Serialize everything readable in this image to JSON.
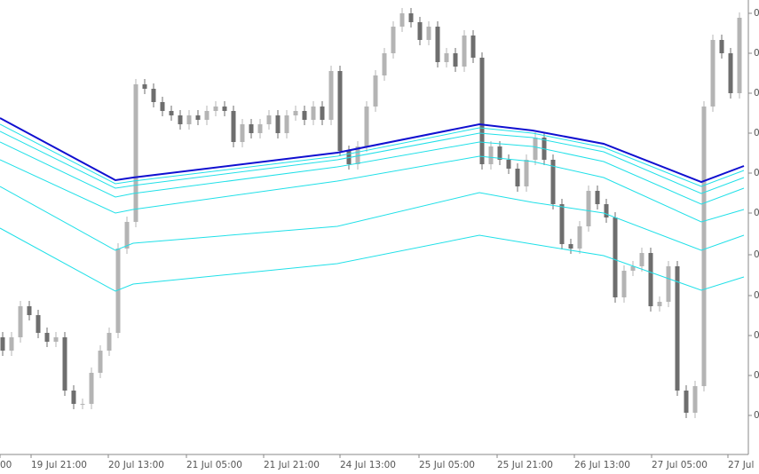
{
  "chart_data": {
    "type": "candlestick",
    "xlim": [
      -0.3,
      84
    ],
    "ylim": [
      0,
      512
    ],
    "up_color": "#b4b4b4",
    "down_color": "#6e6e6e",
    "xticks": [
      {
        "value": -0.3,
        "label": "00"
      },
      {
        "value": 3.2,
        "label": "19 Jul 21:00"
      },
      {
        "value": 11.9,
        "label": "20 Jul 13:00"
      },
      {
        "value": 20.7,
        "label": "21 Jul 05:00"
      },
      {
        "value": 29.4,
        "label": "21 Jul 21:00"
      },
      {
        "value": 38,
        "label": "24 Jul 13:00"
      },
      {
        "value": 46.9,
        "label": "25 Jul 05:00"
      },
      {
        "value": 55.7,
        "label": "25 Jul 21:00"
      },
      {
        "value": 64.4,
        "label": "26 Jul 13:00"
      },
      {
        "value": 73.1,
        "label": "27 Jul 05:00"
      },
      {
        "value": 81.7,
        "label": "27 Jul"
      }
    ],
    "yticks": [
      {
        "value": 497,
        "label": "0."
      },
      {
        "value": 452,
        "label": "0."
      },
      {
        "value": 407,
        "label": "0."
      },
      {
        "value": 362,
        "label": "0."
      },
      {
        "value": 317,
        "label": "0."
      },
      {
        "value": 272,
        "label": "0."
      },
      {
        "value": 225,
        "label": "0."
      },
      {
        "value": 179,
        "label": "0."
      },
      {
        "value": 134,
        "label": "0."
      },
      {
        "value": 89,
        "label": "0."
      },
      {
        "value": 44,
        "label": "0."
      }
    ],
    "open": [
      132,
      117,
      132,
      167,
      157,
      137,
      127,
      132,
      72,
      57,
      57,
      92,
      117,
      137,
      232,
      262,
      417,
      412,
      397,
      387,
      382,
      372,
      382,
      377,
      387,
      392,
      387,
      352,
      372,
      362,
      372,
      382,
      362,
      382,
      387,
      377,
      392,
      377,
      432,
      342,
      327,
      347,
      392,
      427,
      452,
      482,
      497,
      487,
      467,
      482,
      442,
      452,
      437,
      472,
      447,
      327,
      347,
      332,
      322,
      302,
      332,
      357,
      332,
      282,
      237,
      232,
      257,
      297,
      282,
      267,
      177,
      207,
      212,
      227,
      167,
      172,
      212,
      72,
      47,
      77,
      392,
      467,
      452,
      407
    ],
    "high": [
      138,
      138,
      173,
      173,
      163,
      143,
      138,
      138,
      78,
      63,
      98,
      123,
      143,
      238,
      268,
      423,
      423,
      418,
      403,
      393,
      388,
      388,
      388,
      393,
      398,
      398,
      393,
      378,
      378,
      378,
      388,
      388,
      388,
      393,
      393,
      398,
      398,
      438,
      438,
      348,
      353,
      398,
      433,
      458,
      488,
      503,
      503,
      493,
      488,
      488,
      458,
      458,
      478,
      478,
      453,
      353,
      353,
      338,
      328,
      338,
      363,
      363,
      338,
      288,
      243,
      263,
      303,
      303,
      288,
      273,
      213,
      218,
      233,
      233,
      178,
      218,
      218,
      78,
      83,
      398,
      473,
      473,
      458,
      498
    ],
    "low": [
      111,
      111,
      126,
      151,
      131,
      121,
      121,
      66,
      51,
      51,
      51,
      86,
      111,
      131,
      226,
      256,
      406,
      391,
      381,
      376,
      366,
      366,
      371,
      371,
      381,
      381,
      346,
      346,
      356,
      356,
      366,
      356,
      356,
      376,
      371,
      371,
      371,
      371,
      336,
      321,
      321,
      341,
      386,
      421,
      446,
      476,
      481,
      461,
      461,
      436,
      436,
      431,
      431,
      441,
      321,
      321,
      326,
      316,
      296,
      296,
      326,
      326,
      276,
      231,
      226,
      226,
      251,
      276,
      261,
      171,
      171,
      201,
      206,
      161,
      161,
      166,
      66,
      41,
      41,
      71,
      386,
      446,
      401,
      401
    ],
    "close": [
      117,
      132,
      167,
      157,
      137,
      127,
      132,
      72,
      57,
      57,
      92,
      117,
      137,
      232,
      262,
      417,
      412,
      397,
      387,
      382,
      372,
      382,
      377,
      387,
      392,
      387,
      352,
      372,
      362,
      372,
      382,
      362,
      382,
      387,
      377,
      392,
      377,
      432,
      342,
      327,
      347,
      392,
      427,
      452,
      482,
      497,
      487,
      467,
      482,
      442,
      452,
      437,
      472,
      447,
      327,
      347,
      332,
      322,
      302,
      332,
      357,
      332,
      282,
      237,
      232,
      257,
      297,
      282,
      267,
      177,
      207,
      212,
      227,
      167,
      172,
      212,
      72,
      47,
      77,
      392,
      467,
      452,
      407,
      492
    ],
    "ma_x": [
      -0.3,
      12.7,
      14.7,
      37.7,
      53.7,
      59.7,
      67.7,
      78.7,
      83.5
    ],
    "series": [
      {
        "color": "#1010d0",
        "values": [
          379,
          309,
          312,
          340,
          372,
          365,
          350,
          307,
          325
        ]
      },
      {
        "color": "#20e0e8",
        "values": [
          372,
          305,
          308,
          336,
          368,
          362,
          346,
          302,
          320
        ]
      },
      {
        "color": "#20e0e8",
        "values": [
          364,
          300,
          303,
          332,
          362,
          357,
          341,
          294,
          312
        ]
      },
      {
        "color": "#20e0e8",
        "values": [
          352,
          290,
          294,
          324,
          352,
          347,
          330,
          282,
          300
        ]
      },
      {
        "color": "#20e0e8",
        "values": [
          332,
          272,
          276,
          308,
          336,
          330,
          312,
          262,
          276
        ]
      },
      {
        "color": "#20e0e8",
        "values": [
          302,
          230,
          238,
          257,
          295,
          284,
          272,
          230,
          247
        ]
      },
      {
        "color": "#20e0e8",
        "values": [
          255,
          184,
          192,
          215,
          247,
          237,
          224,
          185,
          200
        ]
      }
    ]
  }
}
